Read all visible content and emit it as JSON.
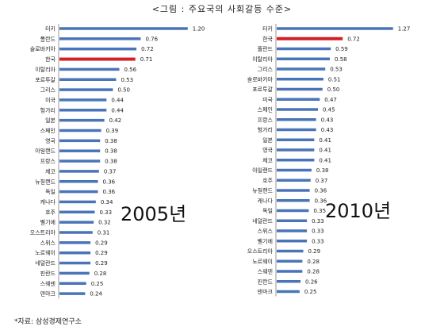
{
  "page_title": "<그림 : 주요국의 사회갈등 수준>",
  "source": "*자료: 삼성경제연구소",
  "colors": {
    "bar": "#4a74b8",
    "highlight": "#d31f26"
  },
  "chart_data": [
    {
      "type": "bar",
      "orientation": "horizontal",
      "year_label": "2005년",
      "highlight": "한국",
      "categories": [
        "터키",
        "폴란드",
        "슬로바키아",
        "한국",
        "이탈리아",
        "포르투갈",
        "그리스",
        "미국",
        "헝가리",
        "일본",
        "스페인",
        "영국",
        "아일랜드",
        "프랑스",
        "체코",
        "뉴질랜드",
        "독일",
        "캐나다",
        "호주",
        "벨기에",
        "오스트리아",
        "스위스",
        "노르웨이",
        "네덜란드",
        "핀란드",
        "스웨덴",
        "덴마크"
      ],
      "values": [
        1.2,
        0.76,
        0.72,
        0.71,
        0.56,
        0.53,
        0.5,
        0.44,
        0.44,
        0.42,
        0.39,
        0.38,
        0.38,
        0.38,
        0.37,
        0.36,
        0.36,
        0.34,
        0.33,
        0.32,
        0.31,
        0.29,
        0.29,
        0.29,
        0.28,
        0.25,
        0.24
      ],
      "value_labels": [
        "1.20",
        "0.76",
        "0.72",
        "0.71",
        "0.56",
        "0.53",
        "0.50",
        "0.44",
        "0.44",
        "0.42",
        "0.39",
        "0.38",
        "0.38",
        "0.38",
        "0.37",
        "0.36",
        "0.36",
        "0.34",
        "0.33",
        "0.32",
        "0.31",
        "0.29",
        "0.29",
        "0.29",
        "0.28",
        "0.25",
        "0.24"
      ],
      "xlim": [
        0,
        1.35
      ]
    },
    {
      "type": "bar",
      "orientation": "horizontal",
      "year_label": "2010년",
      "highlight": "한국",
      "categories": [
        "터키",
        "한국",
        "폴란드",
        "이탈리아",
        "그리스",
        "슬로바키아",
        "포르투갈",
        "미국",
        "스페인",
        "프랑스",
        "헝가리",
        "일본",
        "영국",
        "체코",
        "아일랜드",
        "호주",
        "뉴질랜드",
        "캐나다",
        "독일",
        "네덜란드",
        "스위스",
        "벨기에",
        "오스트리아",
        "노르웨이",
        "스웨덴",
        "핀란드",
        "덴마크"
      ],
      "values": [
        1.27,
        0.72,
        0.59,
        0.58,
        0.53,
        0.51,
        0.5,
        0.47,
        0.45,
        0.43,
        0.43,
        0.41,
        0.41,
        0.41,
        0.38,
        0.37,
        0.36,
        0.36,
        0.35,
        0.33,
        0.33,
        0.33,
        0.29,
        0.28,
        0.28,
        0.26,
        0.25
      ],
      "value_labels": [
        "1.27",
        "0.72",
        "0.59",
        "0.58",
        "0.53",
        "0.51",
        "0.50",
        "0.47",
        "0.45",
        "0.43",
        "0.43",
        "0.41",
        "0.41",
        "0.41",
        "0.38",
        "0.37",
        "0.36",
        "0.36",
        "0.35",
        "0.33",
        "0.33",
        "0.33",
        "0.29",
        "0.28",
        "0.28",
        "0.26",
        "0.25"
      ],
      "xlim": [
        0,
        1.35
      ]
    }
  ]
}
